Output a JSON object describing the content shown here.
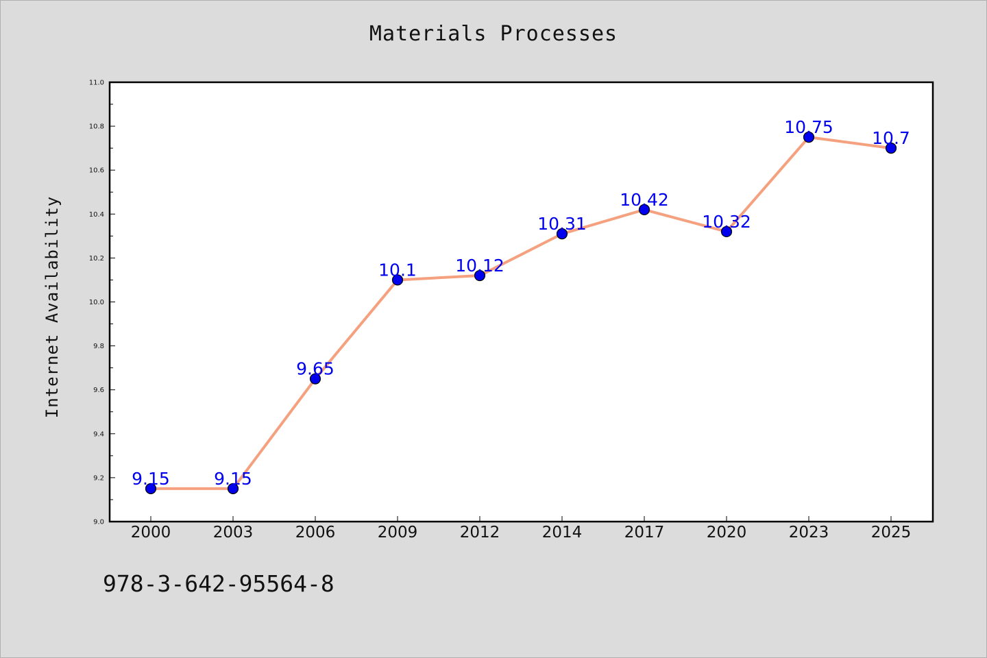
{
  "chart_data": {
    "type": "line",
    "title": "Materials Processes",
    "ylabel": "Internet Availability",
    "xlabel": "",
    "categories": [
      "2000",
      "2003",
      "2006",
      "2009",
      "2012",
      "2014",
      "2017",
      "2020",
      "2023",
      "2025"
    ],
    "series": [
      {
        "values": [
          9.15,
          9.15,
          9.65,
          10.1,
          10.12,
          10.31,
          10.42,
          10.32,
          10.75,
          10.7
        ],
        "labels": [
          "9.15",
          "9.15",
          "9.65",
          "10.1",
          "10.12",
          "10.31",
          "10.42",
          "10.32",
          "10.75",
          "10.7"
        ]
      }
    ],
    "ylim": [
      9.0,
      11.0
    ],
    "yticks": [
      "9.0",
      "9.2",
      "9.4",
      "9.6",
      "9.8",
      "10.0",
      "10.2",
      "10.4",
      "10.6",
      "10.8",
      "11.0"
    ],
    "grid": false,
    "line_color": "#f5a07e",
    "marker_color": "#0000ee",
    "label_color": "#0000ee"
  },
  "footer": {
    "code": "978-3-642-95564-8"
  }
}
